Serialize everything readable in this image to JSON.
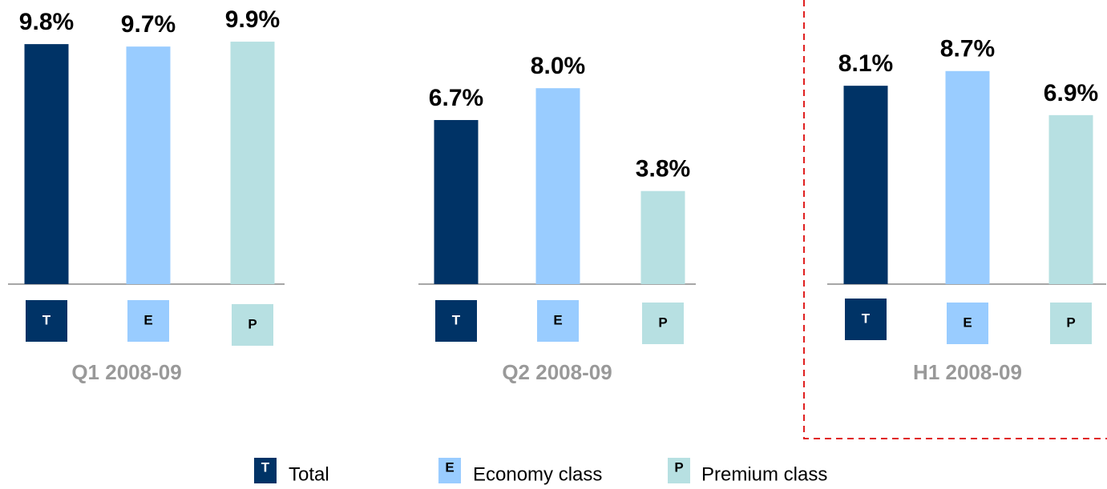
{
  "chart_data": [
    {
      "type": "bar",
      "title": "Q1 2008-09",
      "categories": [
        "T",
        "E",
        "P"
      ],
      "values": [
        9.8,
        9.7,
        9.9
      ],
      "value_labels": [
        "9.8%",
        "9.7%",
        "9.9%"
      ],
      "colors": [
        "#003366",
        "#99ccff",
        "#b7e0e2"
      ]
    },
    {
      "type": "bar",
      "title": "Q2 2008-09",
      "categories": [
        "T",
        "E",
        "P"
      ],
      "values": [
        6.7,
        8.0,
        3.8
      ],
      "value_labels": [
        "6.7%",
        "8.0%",
        "3.8%"
      ],
      "colors": [
        "#003366",
        "#99ccff",
        "#b7e0e2"
      ]
    },
    {
      "type": "bar",
      "title": "H1 2008-09",
      "categories": [
        "T",
        "E",
        "P"
      ],
      "values": [
        8.1,
        8.7,
        6.9
      ],
      "value_labels": [
        "8.1%",
        "8.7%",
        "6.9%"
      ],
      "colors": [
        "#003366",
        "#99ccff",
        "#b7e0e2"
      ]
    }
  ],
  "legend": {
    "labels": [
      "Total",
      "Economy class",
      "Premium class"
    ]
  }
}
